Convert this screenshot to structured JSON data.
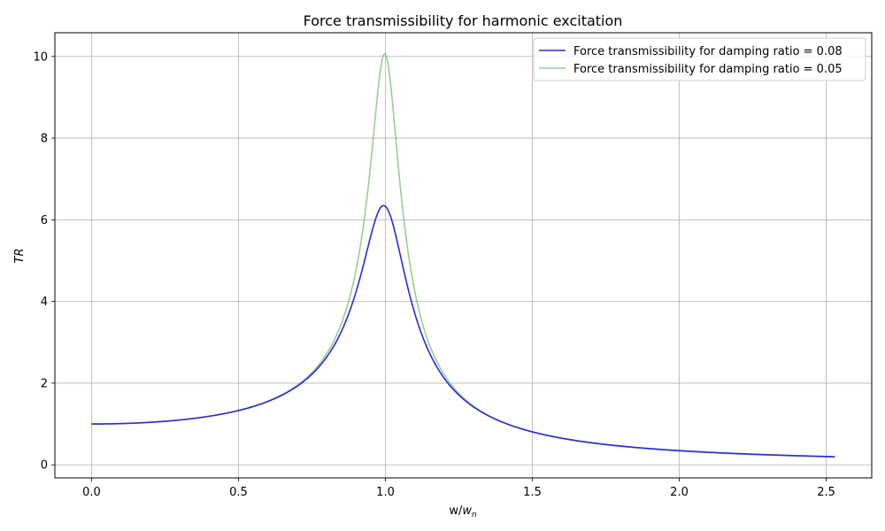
{
  "chart_data": {
    "type": "line",
    "title": "Force transmissibility for harmonic excitation",
    "xlabel_main": "w/",
    "xlabel_italic": "w",
    "xlabel_sub": "n",
    "ylabel": "TR",
    "xlim": [
      -0.125,
      2.655
    ],
    "ylim": [
      -0.32,
      10.58
    ],
    "x_ticks": [
      0.0,
      0.5,
      1.0,
      1.5,
      2.0,
      2.5
    ],
    "x_tick_labels": [
      "0.0",
      "0.5",
      "1.0",
      "1.5",
      "2.0",
      "2.5"
    ],
    "y_ticks": [
      0,
      2,
      4,
      6,
      8,
      10
    ],
    "y_tick_labels": [
      "0",
      "2",
      "4",
      "6",
      "8",
      "10"
    ],
    "grid": true,
    "legend_position": "top-right",
    "x_range": [
      0,
      2.53
    ],
    "series": [
      {
        "name": "Force transmissibility for damping ratio = 0.08",
        "damping_ratio": 0.08,
        "color": "#2b2bd6",
        "opacity": 1.0,
        "peak_value": 6.34,
        "sample_points": [
          [
            0.0,
            1.0
          ],
          [
            0.5,
            1.33
          ],
          [
            0.8,
            2.7
          ],
          [
            0.9,
            4.6
          ],
          [
            0.99,
            6.34
          ],
          [
            1.1,
            4.1
          ],
          [
            1.2,
            2.3
          ],
          [
            1.5,
            0.8
          ],
          [
            2.0,
            0.34
          ],
          [
            2.53,
            0.19
          ]
        ]
      },
      {
        "name": "Force transmissibility for damping ratio = 0.05",
        "damping_ratio": 0.05,
        "color": "#7fbf7f",
        "opacity": 0.8,
        "peak_value": 10.05,
        "sample_points": [
          [
            0.0,
            1.0
          ],
          [
            0.5,
            1.33
          ],
          [
            0.8,
            2.75
          ],
          [
            0.9,
            5.0
          ],
          [
            1.0,
            10.05
          ],
          [
            1.1,
            4.5
          ],
          [
            1.2,
            2.3
          ],
          [
            1.5,
            0.8
          ],
          [
            2.0,
            0.33
          ],
          [
            2.53,
            0.19
          ]
        ]
      }
    ]
  }
}
